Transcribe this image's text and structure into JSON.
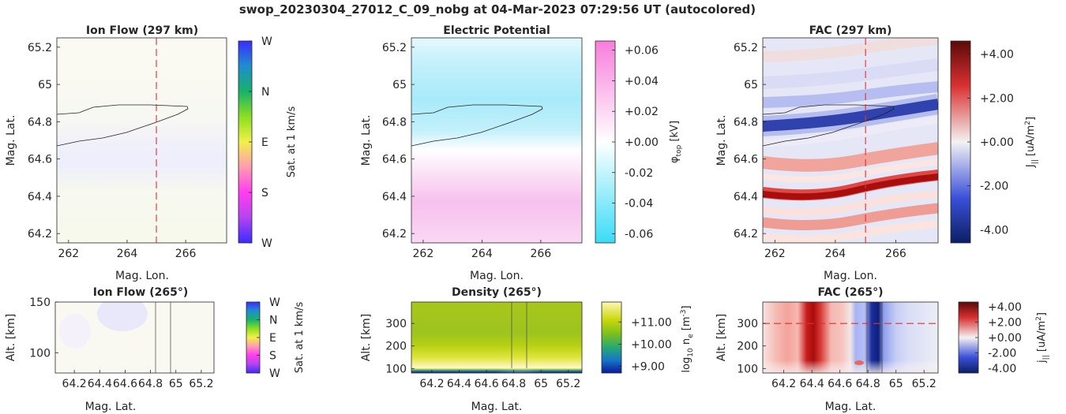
{
  "figure_title": "swop_20230304_27012_C_09_nobg at 04-Mar-2023 07:29:56 UT (autocolored)",
  "chart_data": [
    {
      "id": "ion-flow-map",
      "type": "heatmap",
      "title": "Ion Flow (297 km)",
      "xlabel": "Mag. Lon.",
      "ylabel": "Mag. Lat.",
      "xlim": [
        261.6,
        267.4
      ],
      "ylim": [
        64.15,
        65.25
      ],
      "xticks": [
        "262",
        "264",
        "266"
      ],
      "yticks": [
        "64.2",
        "64.4",
        "64.6",
        "64.8",
        "65",
        "65.2"
      ],
      "colorbar": {
        "label": "Sat. at 1 km/s",
        "ticks": [
          "W",
          "N",
          "E",
          "S",
          "W"
        ]
      },
      "marker_lon": 265
    },
    {
      "id": "electric-potential-map",
      "type": "heatmap",
      "title": "Electric Potential",
      "xlabel": "Mag. Lon.",
      "ylabel": "Mag. Lat.",
      "xlim": [
        261.6,
        267.4
      ],
      "ylim": [
        64.15,
        65.25
      ],
      "xticks": [
        "262",
        "264",
        "266"
      ],
      "yticks": [
        "64.2",
        "64.4",
        "64.6",
        "64.8",
        "65",
        "65.2"
      ],
      "colorbar": {
        "label": "φ_top [kV]",
        "ticks": [
          "+0.06",
          "+0.04",
          "+0.02",
          "+0.00",
          "-0.02",
          "-0.04",
          "-0.06"
        ],
        "range": [
          -0.066,
          0.066
        ]
      }
    },
    {
      "id": "fac-map",
      "type": "heatmap",
      "title": "FAC (297 km)",
      "xlabel": "Mag. Lon.",
      "ylabel": "Mag. Lat.",
      "xlim": [
        261.6,
        267.4
      ],
      "ylim": [
        64.15,
        65.25
      ],
      "xticks": [
        "262",
        "264",
        "266"
      ],
      "yticks": [
        "64.2",
        "64.4",
        "64.6",
        "64.8",
        "65",
        "65.2"
      ],
      "colorbar": {
        "label": "J|| [uA/m²]",
        "ticks": [
          "+4.00",
          "+2.00",
          "+0.00",
          "-2.00",
          "-4.00"
        ],
        "range": [
          -4.6,
          4.6
        ]
      },
      "marker_lon": 265
    },
    {
      "id": "ion-flow-alt",
      "type": "heatmap",
      "title": "Ion Flow (265°)",
      "xlabel": "Mag. Lat.",
      "ylabel": "Alt. [km]",
      "xlim": [
        64.05,
        65.3
      ],
      "ylim": [
        80,
        150
      ],
      "xticks": [
        "64.2",
        "64.4",
        "64.6",
        "64.8",
        "65",
        "65.2"
      ],
      "yticks": [
        "150",
        "100"
      ],
      "colorbar": {
        "label": "Sat. at 1 km/s",
        "ticks": [
          "W",
          "N",
          "E",
          "S",
          "W"
        ]
      }
    },
    {
      "id": "density-alt",
      "type": "heatmap",
      "title": "Density (265°)",
      "xlabel": "Mag. Lat.",
      "ylabel": "Alt. [km]",
      "xlim": [
        64.05,
        65.3
      ],
      "ylim": [
        80,
        395
      ],
      "xticks": [
        "64.2",
        "64.4",
        "64.6",
        "64.8",
        "65",
        "65.2"
      ],
      "yticks": [
        "300",
        "200",
        "100"
      ],
      "colorbar": {
        "label": "log10 n_e [m^-3]",
        "ticks": [
          "+11.00",
          "+10.00",
          "+9.00"
        ],
        "range": [
          8.7,
          11.9
        ]
      }
    },
    {
      "id": "fac-alt",
      "type": "heatmap",
      "title": "FAC (265°)",
      "xlabel": "Mag. Lat.",
      "ylabel": "Alt. [km]",
      "xlim": [
        64.05,
        65.3
      ],
      "ylim": [
        80,
        395
      ],
      "xticks": [
        "64.2",
        "64.4",
        "64.6",
        "64.8",
        "65",
        "65.2"
      ],
      "yticks": [
        "300",
        "200",
        "100"
      ],
      "colorbar": {
        "label": "j|| [uA/m²]",
        "ticks": [
          "+4.00",
          "+2.00",
          "+0.00",
          "-2.00",
          "-4.00"
        ],
        "range": [
          -4.6,
          4.6
        ]
      },
      "marker_alt": 300
    }
  ]
}
